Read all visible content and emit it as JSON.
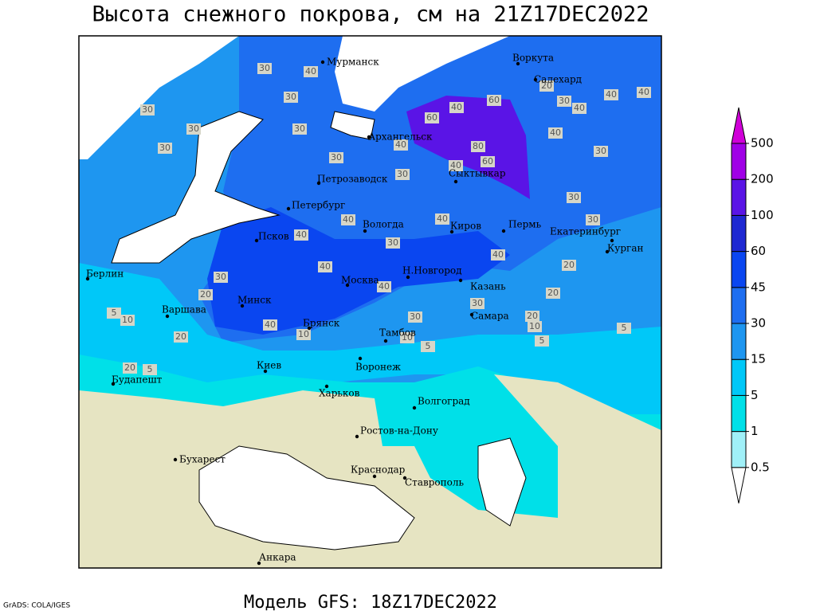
{
  "header": {
    "title": "Высота снежного покрова, см на 21Z17DEC2022"
  },
  "footer": {
    "model": "Модель GFS: 18Z17DEC2022",
    "credit": "GrADS: COLA/IGES"
  },
  "colorbar": {
    "levels": [
      0.5,
      1,
      5,
      15,
      30,
      45,
      60,
      100,
      200,
      500
    ],
    "colors": [
      "#ffffff",
      "#a0f0f8",
      "#00e0e8",
      "#00c8f8",
      "#1e96f0",
      "#1e6ef0",
      "#0a46f0",
      "#1e28d2",
      "#5a14e6",
      "#a000e6",
      "#d000d8"
    ]
  },
  "map": {
    "cities": [
      "Мурманск",
      "Воркута",
      "Салехард",
      "Архангельск",
      "Сыктывкар",
      "Петрозаводск",
      "Петербург",
      "Вологда",
      "Киров",
      "Пермь",
      "Екатеринбург",
      "Курган",
      "Псков",
      "Берлин",
      "Москва",
      "Н.Новгород",
      "Казань",
      "Минск",
      "Варшава",
      "Самара",
      "Брянск",
      "Тамбов",
      "Киев",
      "Воронеж",
      "Будапешт",
      "Харьков",
      "Волгоград",
      "Ростов-на-Дону",
      "Бухарест",
      "Краснодар",
      "Ставрополь",
      "Анкара"
    ],
    "contour_labels": [
      30,
      40,
      30,
      30,
      30,
      30,
      30,
      30,
      40,
      30,
      40,
      60,
      60,
      80,
      40,
      60,
      20,
      30,
      40,
      40,
      40,
      40,
      30,
      30,
      30,
      40,
      40,
      40,
      30,
      40,
      40,
      40,
      20,
      20,
      30,
      10,
      5,
      20,
      40,
      10,
      30,
      30,
      20,
      10,
      5,
      5,
      5,
      10,
      20,
      5,
      20
    ]
  }
}
